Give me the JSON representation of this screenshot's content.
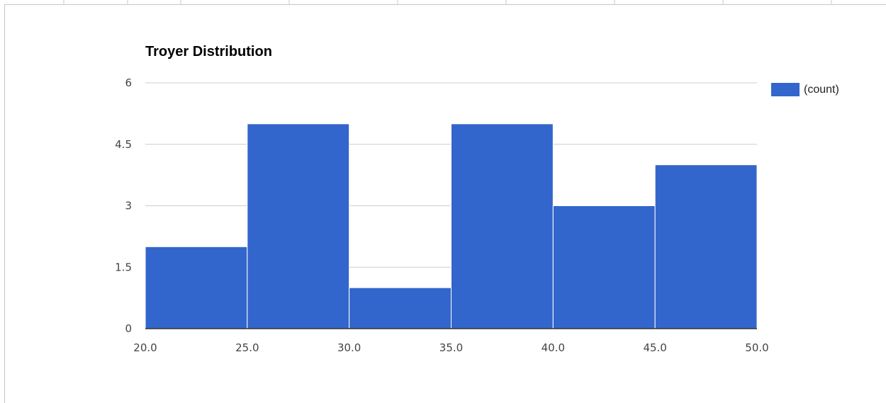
{
  "chart_data": {
    "type": "bar",
    "title": "Troyer Distribution",
    "bins": [
      {
        "start": 20.0,
        "end": 25.0,
        "value": 2
      },
      {
        "start": 25.0,
        "end": 30.0,
        "value": 5
      },
      {
        "start": 30.0,
        "end": 35.0,
        "value": 1
      },
      {
        "start": 35.0,
        "end": 40.0,
        "value": 5
      },
      {
        "start": 40.0,
        "end": 45.0,
        "value": 3
      },
      {
        "start": 45.0,
        "end": 50.0,
        "value": 4
      }
    ],
    "x_ticks": [
      "20.0",
      "25.0",
      "30.0",
      "35.0",
      "40.0",
      "45.0",
      "50.0"
    ],
    "y_ticks": [
      "0",
      "1.5",
      "3",
      "4.5",
      "6"
    ],
    "xlim": [
      20.0,
      50.0
    ],
    "ylim": [
      0,
      6
    ],
    "grid": true,
    "legend": {
      "position": "right",
      "entries": [
        {
          "name": "(count)",
          "color": "#3366cc"
        }
      ]
    },
    "series": [
      {
        "name": "(count)",
        "color": "#3366cc"
      }
    ]
  }
}
